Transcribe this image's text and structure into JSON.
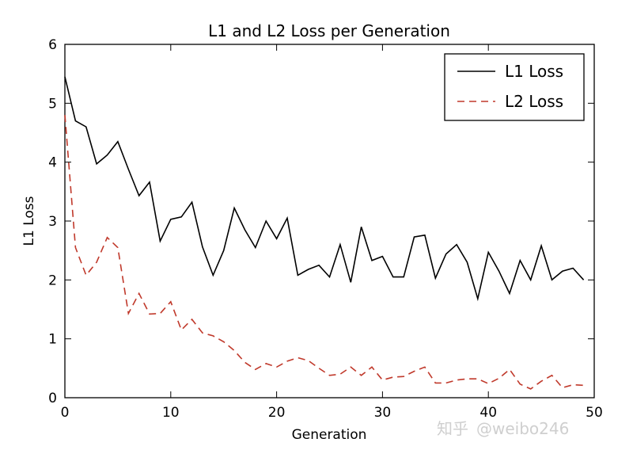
{
  "chart_data": {
    "type": "line",
    "title": "L1 and L2 Loss per Generation",
    "xlabel": "Generation",
    "ylabel": "L1 Loss",
    "xlim": [
      0,
      50
    ],
    "ylim": [
      0,
      6
    ],
    "xticks": [
      0,
      10,
      20,
      30,
      40,
      50
    ],
    "yticks": [
      0,
      1,
      2,
      3,
      4,
      5,
      6
    ],
    "grid": false,
    "legend_position": "top-right",
    "x": [
      0,
      1,
      2,
      3,
      4,
      5,
      6,
      7,
      8,
      9,
      10,
      11,
      12,
      13,
      14,
      15,
      16,
      17,
      18,
      19,
      20,
      21,
      22,
      23,
      24,
      25,
      26,
      27,
      28,
      29,
      30,
      31,
      32,
      33,
      34,
      35,
      36,
      37,
      38,
      39,
      40,
      41,
      42,
      43,
      44,
      45,
      46,
      47,
      48,
      49
    ],
    "series": [
      {
        "name": "L1 Loss",
        "color": "#000000",
        "style": "solid",
        "values": [
          5.45,
          4.7,
          4.6,
          3.97,
          4.12,
          4.35,
          3.88,
          3.43,
          3.66,
          2.66,
          3.03,
          3.07,
          3.32,
          2.56,
          2.08,
          2.5,
          3.22,
          2.85,
          2.55,
          3.0,
          2.7,
          3.05,
          2.08,
          2.18,
          2.25,
          2.05,
          2.6,
          1.96,
          2.9,
          2.33,
          2.4,
          2.05,
          2.05,
          2.73,
          2.76,
          2.03,
          2.44,
          2.6,
          2.3,
          1.68,
          2.47,
          2.15,
          1.77,
          2.33,
          2.0,
          2.58,
          2.0,
          2.15,
          2.2,
          2.0
        ]
      },
      {
        "name": "L2 Loss",
        "color": "#c0392b",
        "style": "dashed",
        "values": [
          4.8,
          2.55,
          2.08,
          2.3,
          2.72,
          2.55,
          1.43,
          1.77,
          1.42,
          1.43,
          1.63,
          1.15,
          1.33,
          1.1,
          1.05,
          0.95,
          0.8,
          0.6,
          0.48,
          0.58,
          0.52,
          0.62,
          0.68,
          0.63,
          0.5,
          0.38,
          0.4,
          0.52,
          0.38,
          0.52,
          0.3,
          0.35,
          0.36,
          0.45,
          0.52,
          0.25,
          0.25,
          0.3,
          0.32,
          0.32,
          0.24,
          0.33,
          0.48,
          0.23,
          0.15,
          0.28,
          0.38,
          0.17,
          0.22,
          0.21
        ]
      }
    ]
  },
  "watermark": {
    "brand": "知乎",
    "handle": "@weibo246"
  }
}
